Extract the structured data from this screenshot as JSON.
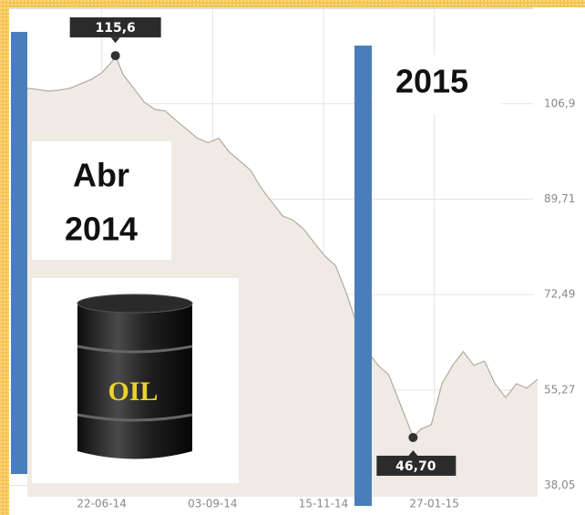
{
  "chart_data": {
    "type": "area",
    "x": [
      "2014-05-04",
      "2014-05-11",
      "2014-05-18",
      "2014-05-25",
      "2014-06-01",
      "2014-06-08",
      "2014-06-15",
      "2014-06-22",
      "2014-06-29",
      "2014-07-01",
      "2014-07-06",
      "2014-07-13",
      "2014-07-20",
      "2014-07-27",
      "2014-08-03",
      "2014-08-10",
      "2014-08-17",
      "2014-08-24",
      "2014-08-31",
      "2014-09-07",
      "2014-09-14",
      "2014-09-21",
      "2014-09-28",
      "2014-10-05",
      "2014-10-12",
      "2014-10-19",
      "2014-10-26",
      "2014-11-02",
      "2014-11-09",
      "2014-11-16",
      "2014-11-23",
      "2014-11-30",
      "2014-12-07",
      "2014-12-14",
      "2014-12-21",
      "2014-12-28",
      "2015-01-04",
      "2015-01-11",
      "2015-01-13",
      "2015-01-18",
      "2015-01-25",
      "2015-02-01",
      "2015-02-08",
      "2015-02-15",
      "2015-02-22",
      "2015-03-01",
      "2015-03-08",
      "2015-03-15",
      "2015-03-22",
      "2015-03-29",
      "2015-04-05"
    ],
    "values": [
      109.7,
      109.5,
      109.2,
      109.4,
      109.7,
      110.5,
      111.3,
      112.5,
      114.6,
      115.6,
      112.2,
      109.7,
      107.2,
      105.9,
      105.6,
      103.9,
      102.3,
      100.7,
      99.9,
      100.7,
      98.2,
      96.6,
      94.9,
      91.7,
      89.2,
      86.7,
      85.9,
      84.3,
      81.8,
      79.4,
      77.7,
      72.8,
      67.1,
      62.2,
      59.7,
      58.0,
      53.1,
      48.2,
      46.7,
      48.2,
      49.0,
      56.4,
      59.7,
      62.2,
      59.7,
      60.5,
      56.4,
      53.9,
      56.4,
      55.6,
      57.2
    ],
    "value_labels": [
      null,
      null,
      null,
      null,
      null,
      null,
      null,
      null,
      null,
      "115,6",
      null,
      null,
      null,
      null,
      null,
      null,
      null,
      null,
      null,
      null,
      null,
      null,
      null,
      null,
      null,
      null,
      null,
      null,
      null,
      null,
      null,
      null,
      null,
      null,
      null,
      null,
      null,
      null,
      "46,70",
      null,
      null,
      null,
      null,
      null,
      null,
      null,
      null,
      null,
      null,
      null,
      null
    ],
    "color": "#b3aa9c",
    "fill": "#efebe4",
    "xlim": [
      "2014-05-04",
      "2015-04-05"
    ],
    "xticks": [
      {
        "value": "2014-06-22",
        "label": "22-06-14"
      },
      {
        "value": "2014-09-03",
        "label": "03-09-14"
      },
      {
        "value": "2014-11-15",
        "label": "15-11-14"
      },
      {
        "value": "2015-01-27",
        "label": "27-01-15"
      }
    ],
    "ylim": [
      36,
      124
    ],
    "yticks": [
      {
        "value": 38.05,
        "label": "38,05"
      },
      {
        "value": 55.27,
        "label": "55,27"
      },
      {
        "value": 72.49,
        "label": "72,49"
      },
      {
        "value": 89.71,
        "label": "89,71"
      },
      {
        "value": 106.93,
        "label": "106,9"
      }
    ],
    "grid": true,
    "annotations": [
      "Abr",
      "2014",
      "2015",
      "OIL"
    ]
  }
}
